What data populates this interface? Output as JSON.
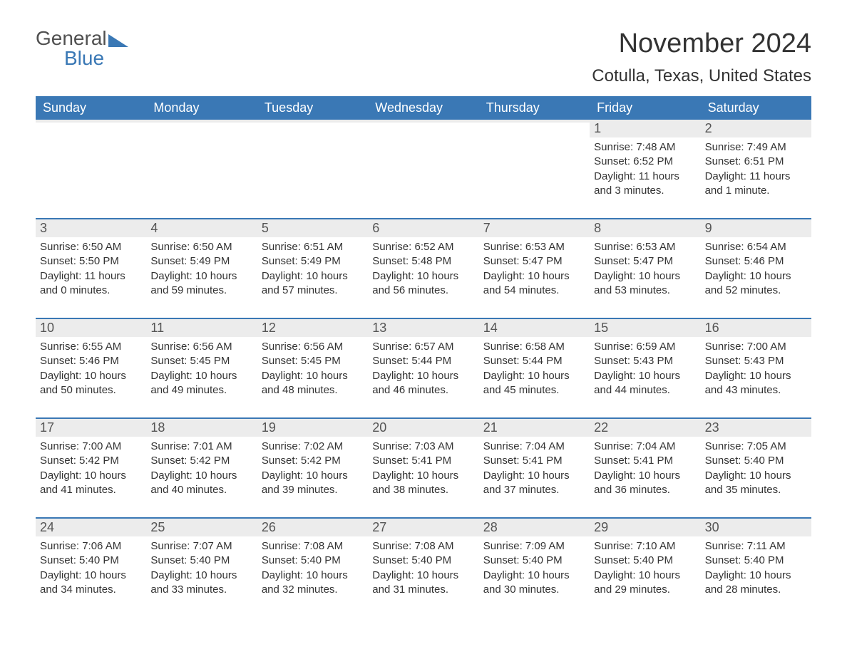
{
  "logo": {
    "text1": "General",
    "text2": "Blue",
    "brand_color": "#3a78b5"
  },
  "title": "November 2024",
  "location": "Cotulla, Texas, United States",
  "colors": {
    "header_bg": "#3a78b5",
    "header_text": "#ffffff",
    "daynum_bg": "#ececec",
    "text": "#333333",
    "page_bg": "#ffffff"
  },
  "weekdays": [
    "Sunday",
    "Monday",
    "Tuesday",
    "Wednesday",
    "Thursday",
    "Friday",
    "Saturday"
  ],
  "weeks": [
    [
      null,
      null,
      null,
      null,
      null,
      {
        "n": "1",
        "sunrise": "Sunrise: 7:48 AM",
        "sunset": "Sunset: 6:52 PM",
        "day1": "Daylight: 11 hours",
        "day2": "and 3 minutes."
      },
      {
        "n": "2",
        "sunrise": "Sunrise: 7:49 AM",
        "sunset": "Sunset: 6:51 PM",
        "day1": "Daylight: 11 hours",
        "day2": "and 1 minute."
      }
    ],
    [
      {
        "n": "3",
        "sunrise": "Sunrise: 6:50 AM",
        "sunset": "Sunset: 5:50 PM",
        "day1": "Daylight: 11 hours",
        "day2": "and 0 minutes."
      },
      {
        "n": "4",
        "sunrise": "Sunrise: 6:50 AM",
        "sunset": "Sunset: 5:49 PM",
        "day1": "Daylight: 10 hours",
        "day2": "and 59 minutes."
      },
      {
        "n": "5",
        "sunrise": "Sunrise: 6:51 AM",
        "sunset": "Sunset: 5:49 PM",
        "day1": "Daylight: 10 hours",
        "day2": "and 57 minutes."
      },
      {
        "n": "6",
        "sunrise": "Sunrise: 6:52 AM",
        "sunset": "Sunset: 5:48 PM",
        "day1": "Daylight: 10 hours",
        "day2": "and 56 minutes."
      },
      {
        "n": "7",
        "sunrise": "Sunrise: 6:53 AM",
        "sunset": "Sunset: 5:47 PM",
        "day1": "Daylight: 10 hours",
        "day2": "and 54 minutes."
      },
      {
        "n": "8",
        "sunrise": "Sunrise: 6:53 AM",
        "sunset": "Sunset: 5:47 PM",
        "day1": "Daylight: 10 hours",
        "day2": "and 53 minutes."
      },
      {
        "n": "9",
        "sunrise": "Sunrise: 6:54 AM",
        "sunset": "Sunset: 5:46 PM",
        "day1": "Daylight: 10 hours",
        "day2": "and 52 minutes."
      }
    ],
    [
      {
        "n": "10",
        "sunrise": "Sunrise: 6:55 AM",
        "sunset": "Sunset: 5:46 PM",
        "day1": "Daylight: 10 hours",
        "day2": "and 50 minutes."
      },
      {
        "n": "11",
        "sunrise": "Sunrise: 6:56 AM",
        "sunset": "Sunset: 5:45 PM",
        "day1": "Daylight: 10 hours",
        "day2": "and 49 minutes."
      },
      {
        "n": "12",
        "sunrise": "Sunrise: 6:56 AM",
        "sunset": "Sunset: 5:45 PM",
        "day1": "Daylight: 10 hours",
        "day2": "and 48 minutes."
      },
      {
        "n": "13",
        "sunrise": "Sunrise: 6:57 AM",
        "sunset": "Sunset: 5:44 PM",
        "day1": "Daylight: 10 hours",
        "day2": "and 46 minutes."
      },
      {
        "n": "14",
        "sunrise": "Sunrise: 6:58 AM",
        "sunset": "Sunset: 5:44 PM",
        "day1": "Daylight: 10 hours",
        "day2": "and 45 minutes."
      },
      {
        "n": "15",
        "sunrise": "Sunrise: 6:59 AM",
        "sunset": "Sunset: 5:43 PM",
        "day1": "Daylight: 10 hours",
        "day2": "and 44 minutes."
      },
      {
        "n": "16",
        "sunrise": "Sunrise: 7:00 AM",
        "sunset": "Sunset: 5:43 PM",
        "day1": "Daylight: 10 hours",
        "day2": "and 43 minutes."
      }
    ],
    [
      {
        "n": "17",
        "sunrise": "Sunrise: 7:00 AM",
        "sunset": "Sunset: 5:42 PM",
        "day1": "Daylight: 10 hours",
        "day2": "and 41 minutes."
      },
      {
        "n": "18",
        "sunrise": "Sunrise: 7:01 AM",
        "sunset": "Sunset: 5:42 PM",
        "day1": "Daylight: 10 hours",
        "day2": "and 40 minutes."
      },
      {
        "n": "19",
        "sunrise": "Sunrise: 7:02 AM",
        "sunset": "Sunset: 5:42 PM",
        "day1": "Daylight: 10 hours",
        "day2": "and 39 minutes."
      },
      {
        "n": "20",
        "sunrise": "Sunrise: 7:03 AM",
        "sunset": "Sunset: 5:41 PM",
        "day1": "Daylight: 10 hours",
        "day2": "and 38 minutes."
      },
      {
        "n": "21",
        "sunrise": "Sunrise: 7:04 AM",
        "sunset": "Sunset: 5:41 PM",
        "day1": "Daylight: 10 hours",
        "day2": "and 37 minutes."
      },
      {
        "n": "22",
        "sunrise": "Sunrise: 7:04 AM",
        "sunset": "Sunset: 5:41 PM",
        "day1": "Daylight: 10 hours",
        "day2": "and 36 minutes."
      },
      {
        "n": "23",
        "sunrise": "Sunrise: 7:05 AM",
        "sunset": "Sunset: 5:40 PM",
        "day1": "Daylight: 10 hours",
        "day2": "and 35 minutes."
      }
    ],
    [
      {
        "n": "24",
        "sunrise": "Sunrise: 7:06 AM",
        "sunset": "Sunset: 5:40 PM",
        "day1": "Daylight: 10 hours",
        "day2": "and 34 minutes."
      },
      {
        "n": "25",
        "sunrise": "Sunrise: 7:07 AM",
        "sunset": "Sunset: 5:40 PM",
        "day1": "Daylight: 10 hours",
        "day2": "and 33 minutes."
      },
      {
        "n": "26",
        "sunrise": "Sunrise: 7:08 AM",
        "sunset": "Sunset: 5:40 PM",
        "day1": "Daylight: 10 hours",
        "day2": "and 32 minutes."
      },
      {
        "n": "27",
        "sunrise": "Sunrise: 7:08 AM",
        "sunset": "Sunset: 5:40 PM",
        "day1": "Daylight: 10 hours",
        "day2": "and 31 minutes."
      },
      {
        "n": "28",
        "sunrise": "Sunrise: 7:09 AM",
        "sunset": "Sunset: 5:40 PM",
        "day1": "Daylight: 10 hours",
        "day2": "and 30 minutes."
      },
      {
        "n": "29",
        "sunrise": "Sunrise: 7:10 AM",
        "sunset": "Sunset: 5:40 PM",
        "day1": "Daylight: 10 hours",
        "day2": "and 29 minutes."
      },
      {
        "n": "30",
        "sunrise": "Sunrise: 7:11 AM",
        "sunset": "Sunset: 5:40 PM",
        "day1": "Daylight: 10 hours",
        "day2": "and 28 minutes."
      }
    ]
  ]
}
